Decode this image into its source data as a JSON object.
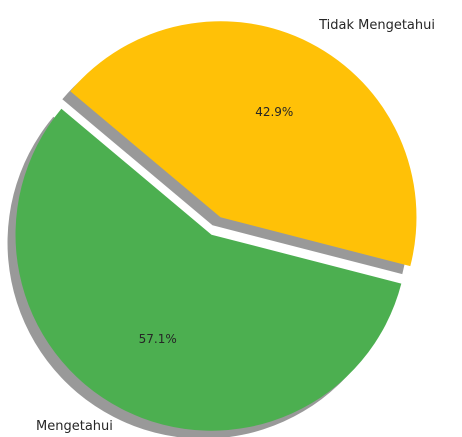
{
  "chart_data": {
    "type": "pie",
    "categories": [
      "Mengetahui",
      "Tidak Mengetahui"
    ],
    "values": [
      57.1,
      42.9
    ],
    "value_labels": [
      "57.1%",
      "42.9%"
    ],
    "colors": [
      "#4caf50",
      "#ffc107"
    ],
    "startangle": 140,
    "explode": [
      0.05,
      0.05
    ],
    "shadow": true
  }
}
